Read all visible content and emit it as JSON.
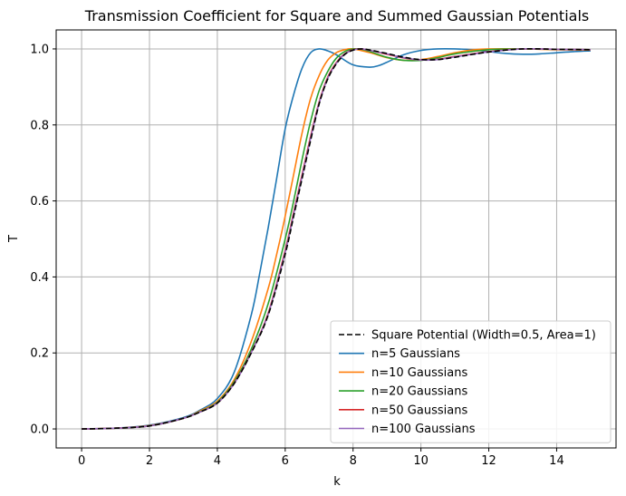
{
  "chart_data": {
    "type": "line",
    "title": "Transmission Coefficient for Square and Summed Gaussian Potentials",
    "xlabel": "k",
    "ylabel": "T",
    "xlim": [
      -0.75,
      15.75
    ],
    "ylim": [
      -0.05,
      1.05
    ],
    "xticks": [
      0,
      2,
      4,
      6,
      8,
      10,
      12,
      14
    ],
    "yticks": [
      0.0,
      0.2,
      0.4,
      0.6,
      0.8,
      1.0
    ],
    "xtick_labels": [
      "0",
      "2",
      "4",
      "6",
      "8",
      "10",
      "12",
      "14"
    ],
    "ytick_labels": [
      "0.0",
      "0.2",
      "0.4",
      "0.6",
      "0.8",
      "1.0"
    ],
    "grid": true,
    "legend_position": "lower-right",
    "series": [
      {
        "name": "Square Potential (Width=0.5, Area=1)",
        "color": "#000000",
        "dashed": true,
        "x": [
          0,
          1,
          2,
          3,
          3.5,
          4,
          4.5,
          5,
          5.5,
          6,
          6.25,
          6.5,
          6.75,
          7,
          7.25,
          7.5,
          7.75,
          8,
          8.25,
          8.5,
          9,
          9.5,
          10,
          10.5,
          11,
          12,
          13,
          14,
          15
        ],
        "values": [
          0.0,
          0.002,
          0.008,
          0.028,
          0.045,
          0.068,
          0.12,
          0.2,
          0.3,
          0.46,
          0.56,
          0.66,
          0.76,
          0.855,
          0.92,
          0.96,
          0.985,
          0.997,
          1.0,
          0.997,
          0.988,
          0.978,
          0.972,
          0.972,
          0.978,
          0.992,
          1.0,
          0.999,
          0.998
        ]
      },
      {
        "name": "n=5 Gaussians",
        "color": "#1f77b4",
        "dashed": false,
        "x": [
          0,
          1,
          2,
          3,
          3.5,
          4,
          4.5,
          5,
          5.25,
          5.5,
          5.75,
          6,
          6.25,
          6.5,
          6.75,
          7,
          7.25,
          7.5,
          8,
          8.5,
          8.75,
          9,
          9.5,
          10,
          10.5,
          11,
          11.5,
          12,
          12.5,
          13,
          13.5,
          14,
          14.5,
          15
        ],
        "values": [
          0.0,
          0.002,
          0.01,
          0.03,
          0.05,
          0.08,
          0.15,
          0.3,
          0.41,
          0.53,
          0.66,
          0.79,
          0.88,
          0.95,
          0.99,
          1.0,
          0.995,
          0.985,
          0.958,
          0.952,
          0.956,
          0.965,
          0.985,
          0.996,
          1.0,
          1.0,
          0.998,
          0.993,
          0.988,
          0.986,
          0.987,
          0.99,
          0.993,
          0.995
        ]
      },
      {
        "name": "n=10 Gaussians",
        "color": "#ff7f0e",
        "dashed": false,
        "x": [
          0,
          1,
          2,
          3,
          3.5,
          4,
          4.5,
          5,
          5.5,
          5.75,
          6,
          6.25,
          6.5,
          6.75,
          7,
          7.25,
          7.5,
          7.75,
          8,
          8.5,
          9,
          9.5,
          10,
          10.5,
          11,
          11.5,
          12,
          13,
          14,
          15
        ],
        "values": [
          0.0,
          0.002,
          0.009,
          0.028,
          0.048,
          0.073,
          0.13,
          0.23,
          0.37,
          0.46,
          0.56,
          0.67,
          0.78,
          0.87,
          0.93,
          0.97,
          0.99,
          0.998,
          1.0,
          0.99,
          0.977,
          0.97,
          0.972,
          0.98,
          0.99,
          0.997,
          1.0,
          1.0,
          0.998,
          0.997
        ]
      },
      {
        "name": "n=20 Gaussians",
        "color": "#2ca02c",
        "dashed": false,
        "x": [
          0,
          1,
          2,
          3,
          3.5,
          4,
          4.5,
          5,
          5.5,
          6,
          6.25,
          6.5,
          6.75,
          7,
          7.25,
          7.5,
          7.75,
          8,
          8.25,
          8.5,
          9,
          9.5,
          10,
          10.5,
          11,
          12,
          13,
          14,
          15
        ],
        "values": [
          0.0,
          0.002,
          0.008,
          0.028,
          0.046,
          0.07,
          0.125,
          0.21,
          0.33,
          0.5,
          0.6,
          0.71,
          0.81,
          0.89,
          0.94,
          0.975,
          0.993,
          1.0,
          0.999,
          0.993,
          0.978,
          0.97,
          0.97,
          0.977,
          0.987,
          0.998,
          1.0,
          0.999,
          0.998
        ]
      },
      {
        "name": "n=50 Gaussians",
        "color": "#d62728",
        "dashed": false,
        "x": [
          0,
          1,
          2,
          3,
          3.5,
          4,
          4.5,
          5,
          5.5,
          6,
          6.25,
          6.5,
          6.75,
          7,
          7.25,
          7.5,
          7.75,
          8,
          8.25,
          8.5,
          9,
          9.5,
          10,
          10.5,
          11,
          12,
          13,
          14,
          15
        ],
        "values": [
          0.0,
          0.002,
          0.008,
          0.028,
          0.045,
          0.068,
          0.121,
          0.202,
          0.305,
          0.47,
          0.57,
          0.67,
          0.77,
          0.86,
          0.925,
          0.963,
          0.987,
          0.998,
          1.0,
          0.996,
          0.986,
          0.976,
          0.971,
          0.973,
          0.98,
          0.993,
          1.0,
          0.999,
          0.998
        ]
      },
      {
        "name": "n=100 Gaussians",
        "color": "#9467bd",
        "dashed": false,
        "x": [
          0,
          1,
          2,
          3,
          3.5,
          4,
          4.5,
          5,
          5.5,
          6,
          6.25,
          6.5,
          6.75,
          7,
          7.25,
          7.5,
          7.75,
          8,
          8.25,
          8.5,
          9,
          9.5,
          10,
          10.5,
          11,
          12,
          13,
          14,
          15
        ],
        "values": [
          0.0,
          0.002,
          0.008,
          0.028,
          0.045,
          0.068,
          0.12,
          0.201,
          0.302,
          0.465,
          0.565,
          0.665,
          0.765,
          0.857,
          0.922,
          0.961,
          0.986,
          0.997,
          1.0,
          0.996,
          0.987,
          0.977,
          0.971,
          0.972,
          0.979,
          0.992,
          1.0,
          0.999,
          0.998
        ]
      }
    ]
  }
}
